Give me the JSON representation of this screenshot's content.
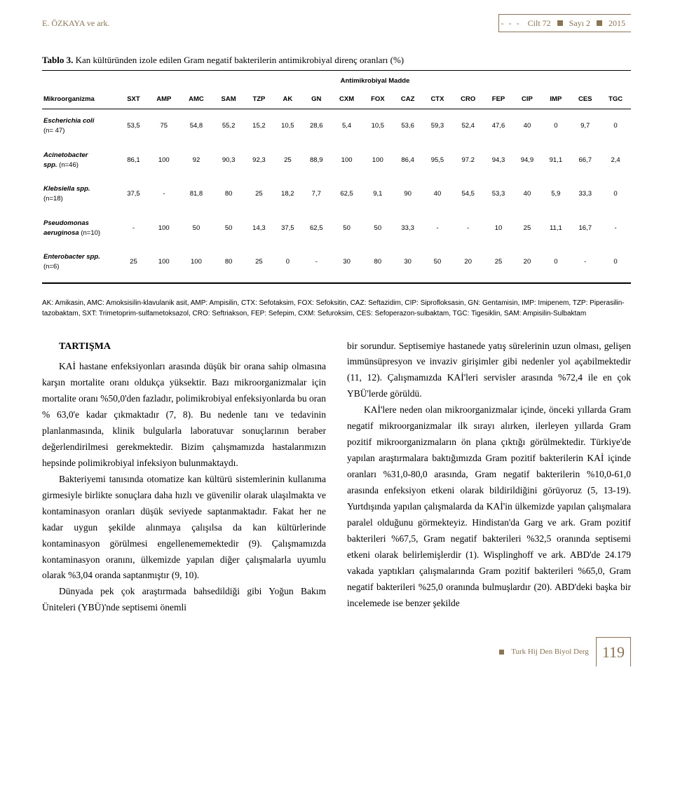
{
  "header": {
    "left": "E. ÖZKAYA ve ark.",
    "right_parts": [
      "Cilt 72",
      "Sayı 2",
      "2015"
    ]
  },
  "table": {
    "caption_label": "Tablo 3.",
    "caption_text": "Kan kültüründen izole edilen Gram negatif bakterilerin antimikrobiyal direnç oranları (%)",
    "super_header": "Antimikrobiyal Madde",
    "org_header": "Mikroorganizma",
    "columns": [
      "SXT",
      "AMP",
      "AMC",
      "SAM",
      "TZP",
      "AK",
      "GN",
      "CXM",
      "FOX",
      "CAZ",
      "CTX",
      "CRO",
      "FEP",
      "CIP",
      "IMP",
      "CES",
      "TGC"
    ],
    "rows": [
      {
        "org": "Escherichia coli",
        "n": "(n= 47)",
        "vals": [
          "53,5",
          "75",
          "54,8",
          "55,2",
          "15,2",
          "10,5",
          "28,6",
          "5,4",
          "10,5",
          "53,6",
          "59,3",
          "52,4",
          "47,6",
          "40",
          "0",
          "9,7",
          "0"
        ]
      },
      {
        "org": "Acinetobacter",
        "org2": "spp.",
        "n": "(n=46)",
        "vals": [
          "86,1",
          "100",
          "92",
          "90,3",
          "92,3",
          "25",
          "88,9",
          "100",
          "100",
          "86,4",
          "95,5",
          "97.2",
          "94,3",
          "94,9",
          "91,1",
          "66,7",
          "2,4"
        ]
      },
      {
        "org": "Klebsiella spp.",
        "n": "(n=18)",
        "vals": [
          "37,5",
          "-",
          "81,8",
          "80",
          "25",
          "18,2",
          "7,7",
          "62,5",
          "9,1",
          "90",
          "40",
          "54,5",
          "53,3",
          "40",
          "5,9",
          "33,3",
          "0"
        ]
      },
      {
        "org": "Pseudomonas",
        "org2": "aeruginosa",
        "n": "(n=10)",
        "vals": [
          "-",
          "100",
          "50",
          "50",
          "14,3",
          "37,5",
          "62,5",
          "50",
          "50",
          "33,3",
          "-",
          "-",
          "10",
          "25",
          "11,1",
          "16,7",
          "-"
        ]
      },
      {
        "org": "Enterobacter spp.",
        "n": "(n=6)",
        "vals": [
          "25",
          "100",
          "100",
          "80",
          "25",
          "0",
          "-",
          "30",
          "80",
          "30",
          "50",
          "20",
          "25",
          "20",
          "0",
          "-",
          "0"
        ]
      }
    ]
  },
  "abbrev": "AK: Amikasin, AMC: Amoksisilin-klavulanik asit, AMP: Ampisilin, CTX: Sefotaksim, FOX: Sefoksitin, CAZ: Seftazidim, CIP: Siprofloksasin, GN: Gentamisin, IMP: Imipenem, TZP: Piperasilin- tazobaktam, SXT: Trimetoprim-sulfametoksazol, CRO: Seftriakson, FEP: Sefepim, CXM: Sefuroksim, CES: Sefoperazon-sulbaktam, TGC: Tigesiklin, SAM: Ampisilin-Sulbaktam",
  "section_title": "TARTIŞMA",
  "left_paras": [
    "KAİ hastane enfeksiyonları arasında düşük bir orana sahip olmasına karşın mortalite oranı oldukça yüksektir. Bazı mikroorganizmalar için mortalite oranı %50,0'den fazladır, polimikrobiyal enfeksiyonlarda bu oran % 63,0'e kadar çıkmaktadır (7, 8). Bu nedenle tanı ve tedavinin planlanmasında, klinik bulgularla laboratuvar sonuçlarının beraber değerlendirilmesi gerekmektedir. Bizim çalışmamızda hastalarımızın hepsinde polimikrobiyal infeksiyon bulunmaktaydı.",
    "Bakteriyemi tanısında otomatize kan kültürü sistemlerinin kullanıma girmesiyle birlikte sonuçlara daha hızlı ve güvenilir olarak ulaşılmakta ve kontaminasyon oranları düşük seviyede saptanmaktadır. Fakat her ne kadar uygun şekilde alınmaya çalışılsa da kan kültürlerinde kontaminasyon görülmesi engellenememektedir (9). Çalışmamızda kontaminasyon oranını, ülkemizde yapılan diğer çalışmalarla uyumlu olarak %3,04 oranda saptanmıştır (9, 10).",
    "Dünyada pek çok araştırmada bahsedildiği gibi Yoğun Bakım Üniteleri (YBÜ)'nde septisemi önemli"
  ],
  "right_paras": [
    "bir sorundur. Septisemiye hastanede yatış sürelerinin uzun olması, gelişen immünsüpresyon ve invaziv girişimler gibi nedenler yol açabilmektedir (11, 12). Çalışmamızda KAİ'leri servisler arasında %72,4 ile en çok YBÜ'lerde görüldü.",
    "KAİ'lere neden olan mikroorganizmalar içinde, önceki yıllarda Gram negatif mikroorganizmalar ilk sırayı alırken, ilerleyen yıllarda Gram pozitif mikroorganizmaların ön plana çıktığı görülmektedir. Türkiye'de yapılan araştırmalara baktığımızda Gram pozitif bakterilerin KAİ içinde oranları %31,0-80,0 arasında, Gram negatif bakterilerin %10,0-61,0 arasında enfeksiyon etkeni olarak bildirildiğini görüyoruz (5, 13-19). Yurtdışında yapılan çalışmalarda da KAİ'in ülkemizde yapılan çalışmalara paralel olduğunu görmekteyiz. Hindistan'da Garg ve ark. Gram pozitif bakterileri %67,5, Gram negatif bakterileri %32,5 oranında septisemi etkeni olarak belirlemişlerdir (1). Wisplinghoff ve ark. ABD'de 24.179 vakada yaptıkları çalışmalarında Gram pozitif bakterileri %65,0, Gram negatif bakterileri %25,0 oranında bulmuşlardır (20). ABD'deki başka bir incelemede ise benzer şekilde"
  ],
  "footer": {
    "journal": "Turk Hij Den Biyol Derg",
    "page": "119"
  }
}
